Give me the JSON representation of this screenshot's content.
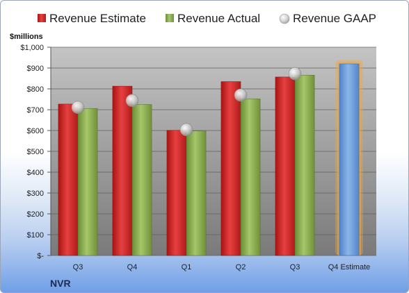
{
  "chart_data": {
    "type": "bar",
    "company": "NVR",
    "ylabel": "$millions",
    "ylim": [
      0,
      1000
    ],
    "yticks": [
      "$-",
      "$100",
      "$200",
      "$300",
      "$400",
      "$500",
      "$600",
      "$700",
      "$800",
      "$900",
      "$1,000"
    ],
    "categories": [
      "Q3",
      "Q4",
      "Q1",
      "Q2",
      "Q3",
      "Q4 Estimate"
    ],
    "legend_position": "top",
    "grid": true,
    "series": [
      {
        "name": "Revenue Estimate",
        "kind": "bar",
        "color": "#d42a2a",
        "values": [
          727,
          813,
          601,
          835,
          857,
          null
        ]
      },
      {
        "name": "Revenue Actual",
        "kind": "bar",
        "color": "#8db052",
        "values": [
          706,
          725,
          598,
          752,
          866,
          null
        ]
      },
      {
        "name": "Revenue GAAP",
        "kind": "marker",
        "color": "#c8c8c8",
        "values": [
          711,
          744,
          604,
          770,
          873,
          null
        ]
      }
    ],
    "estimate_bar": {
      "category": "Q4 Estimate",
      "value": 920,
      "color": "#6e9fdc",
      "glow": "#f4a640"
    }
  }
}
